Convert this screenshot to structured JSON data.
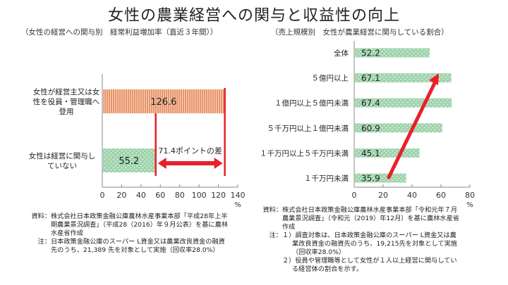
{
  "title": "女性の農業経営への関与と収益性の向上",
  "chart_data": [
    {
      "type": "bar",
      "orientation": "horizontal",
      "title": "（女性の経営への関与別　経常利益増加率（直近３年間））",
      "categories": [
        "女性が経営主又は女性を役員・管理職へ登用",
        "女性は経営に関与していない"
      ],
      "category_lines": [
        [
          "女性が経営主又は女",
          "性を役員・管理職へ",
          "登用"
        ],
        [
          "女性は経営に関与し",
          "ていない"
        ]
      ],
      "values": [
        126.6,
        55.2
      ],
      "value_labels": [
        "126.6",
        "55.2"
      ],
      "colors": [
        "#e8956b",
        "#9fd4ad"
      ],
      "xlim": [
        0,
        140
      ],
      "xticks": [
        "0",
        "20",
        "40",
        "60",
        "80",
        "100",
        "120",
        "140"
      ],
      "xunit": "%",
      "annotation": "71.4ポイントの差",
      "accent": "#e8202a",
      "source_lines": [
        "資料：",
        "株式会社日本政策金融公庫農林水産事業本部「平成28年上半",
        "期農業景況調査」（平成28（2016）年９月公表）を基に農林",
        "水産省作成"
      ],
      "note_lines": [
        "注：",
        "日本政策金融公庫のスーパー L資金又は農業改良資金の融資",
        "先のうち、21,389 先を対象として実施（回収率28.0%）"
      ]
    },
    {
      "type": "bar",
      "orientation": "horizontal",
      "title": "（売上規模別　女性が農業経営に関与している割合）",
      "categories": [
        "全体",
        "５億円以上",
        "１億円以上５億円未満",
        "５千万円以上１億円未満",
        "１千万円以上５千万円未満",
        "１千万円未満"
      ],
      "values": [
        52.2,
        67.1,
        67.4,
        60.9,
        45.1,
        35.9
      ],
      "value_labels": [
        "52.2",
        "67.1",
        "67.4",
        "60.9",
        "45.1",
        "35.9"
      ],
      "color": "#9fd4ad",
      "xlim": [
        0,
        80
      ],
      "xticks": [
        "0",
        "20",
        "40",
        "60",
        "80"
      ],
      "xunit": "%",
      "accent": "#e8202a",
      "source_lines": [
        "資料：",
        "株式会社日本政策金融公庫農林水産事業本部「令和元年７月",
        "農業景況調査」（令和元（2019）年12月）を基に農林水産省",
        "作成"
      ],
      "note_lines": [
        "注：",
        "１）調査対象は、日本政策金融公庫のスーパー L資金又は農",
        "業改良資金の融資先のうち、19,215先を対象として実施",
        "（回収率28.0%）",
        "２）役員や管理職等として女性が１人以上経営に関与してい",
        "る経営体の割合を示す。"
      ]
    }
  ]
}
